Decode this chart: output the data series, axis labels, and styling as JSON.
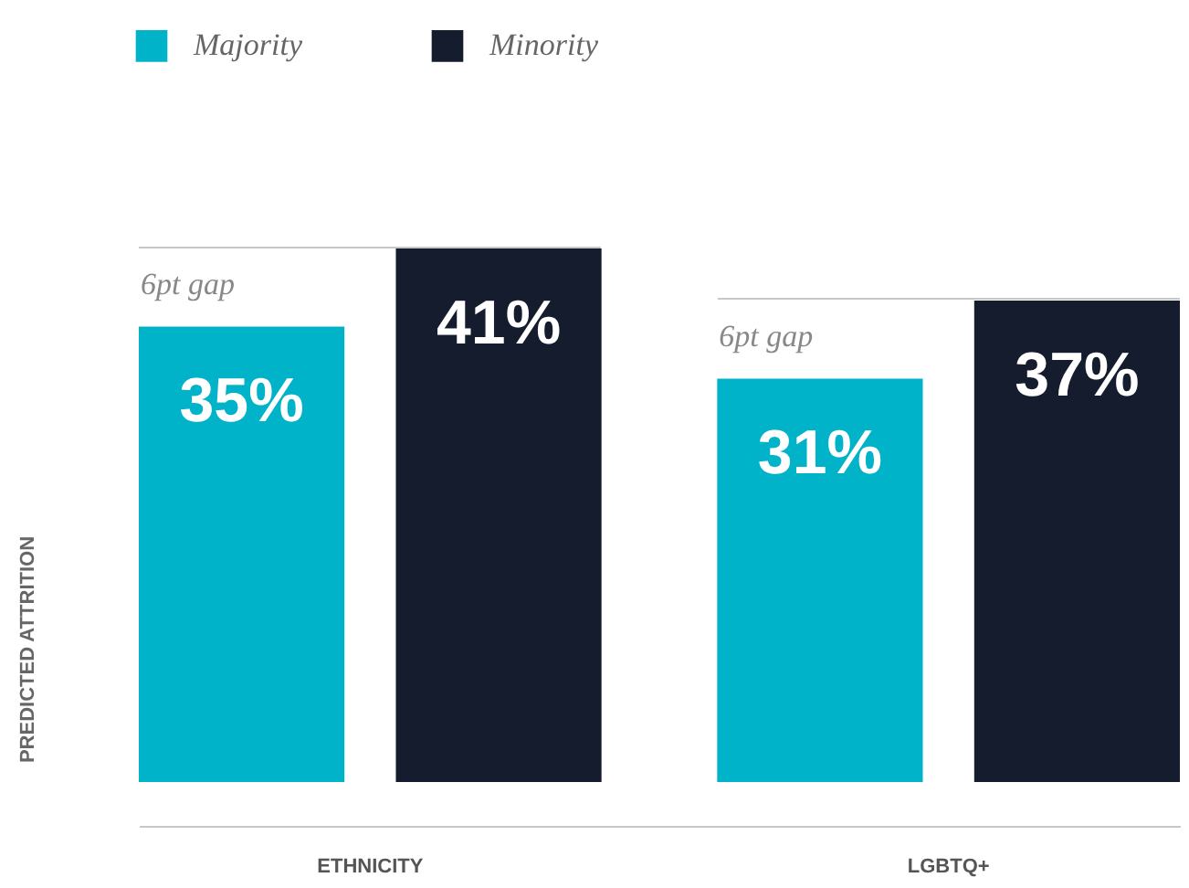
{
  "chart_data": {
    "type": "bar",
    "ylabel": "PREDICTED ATTRITION",
    "categories": [
      "ETHNICITY",
      "LGBTQ+"
    ],
    "series": [
      {
        "name": "Majority",
        "color": "#00b3c9",
        "values": [
          35,
          31
        ],
        "value_labels": [
          "35%",
          "31%"
        ]
      },
      {
        "name": "Minority",
        "color": "#151c2e",
        "values": [
          41,
          37
        ],
        "value_labels": [
          "41%",
          "37%"
        ]
      }
    ],
    "annotations": [
      "6pt gap",
      "6pt gap"
    ],
    "legend": "top left"
  }
}
